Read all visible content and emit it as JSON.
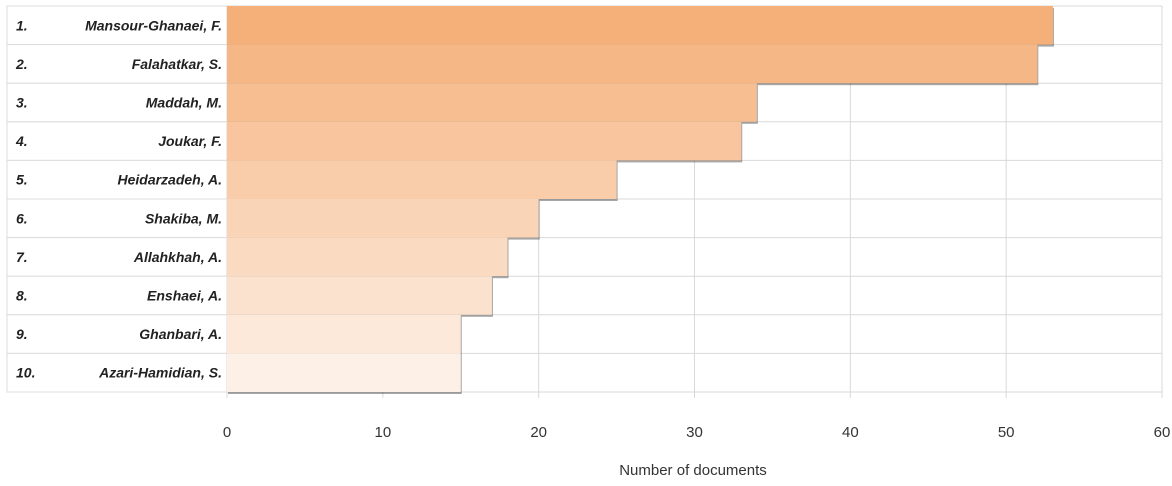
{
  "chart_data": {
    "type": "bar",
    "orientation": "horizontal",
    "ranks": [
      "1.",
      "2.",
      "3.",
      "4.",
      "5.",
      "6.",
      "7.",
      "8.",
      "9.",
      "10."
    ],
    "categories": [
      "Mansour-Ghanaei, F.",
      "Falahatkar, S.",
      "Maddah, M.",
      "Joukar, F.",
      "Heidarzadeh, A.",
      "Shakiba, M.",
      "Allahkhah, A.",
      "Enshaei, A.",
      "Ghanbari, A.",
      "Azari-Hamidian, S."
    ],
    "values": [
      53,
      52,
      34,
      33,
      25,
      20,
      18,
      17,
      15,
      15
    ],
    "xlabel": "Number of documents",
    "xlim": [
      0,
      60
    ],
    "xticks": [
      "0",
      "10",
      "20",
      "30",
      "40",
      "50",
      "60"
    ],
    "grid": true,
    "colors": {
      "bar_dark": "#f5b07a",
      "bar_light": "#fdf0e6",
      "grid": "#d9d9d9"
    }
  }
}
